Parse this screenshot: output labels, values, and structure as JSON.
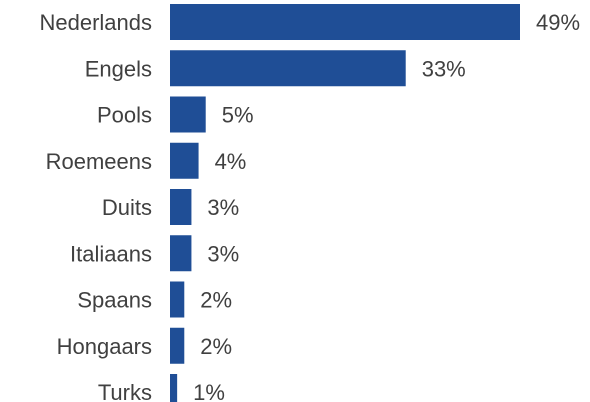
{
  "chart_data": {
    "type": "bar",
    "orientation": "horizontal",
    "title": "",
    "xlabel": "",
    "ylabel": "",
    "categories": [
      "Nederlands",
      "Engels",
      "Pools",
      "Roemeens",
      "Duits",
      "Italiaans",
      "Spaans",
      "Hongaars",
      "Turks"
    ],
    "values": [
      49,
      33,
      5,
      4,
      3,
      3,
      2,
      2,
      1
    ],
    "data_labels": [
      "49%",
      "33%",
      "5%",
      "4%",
      "3%",
      "3%",
      "2%",
      "2%",
      "1%"
    ],
    "unit": "%",
    "xlim": [
      0,
      49
    ],
    "grid": false,
    "legend": "none",
    "colors": {
      "bar": "#1f4e96",
      "text": "#404040",
      "background": "#ffffff"
    }
  }
}
